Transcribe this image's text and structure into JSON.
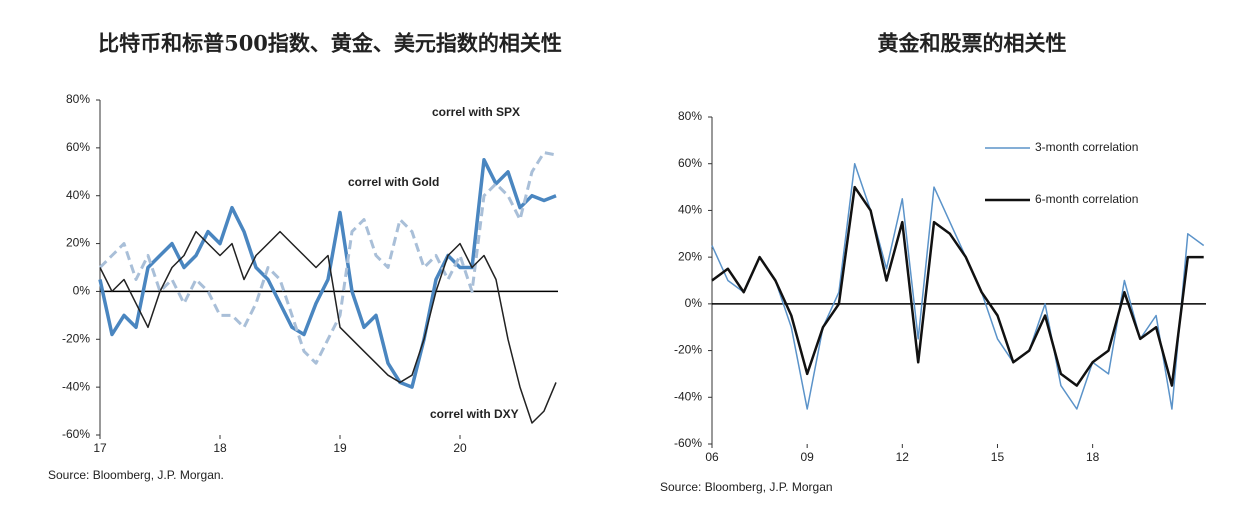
{
  "chart_data": [
    {
      "type": "line",
      "title": "比特币和标普500指数、黄金、美元指数的相关性",
      "source": "Source: Bloomberg, J.P. Morgan.",
      "x": [
        17,
        17.1,
        17.2,
        17.3,
        17.4,
        17.5,
        17.6,
        17.7,
        17.8,
        17.9,
        18,
        18.1,
        18.2,
        18.3,
        18.4,
        18.5,
        18.6,
        18.7,
        18.8,
        18.9,
        19,
        19.1,
        19.2,
        19.3,
        19.4,
        19.5,
        19.6,
        19.7,
        19.8,
        19.9,
        20,
        20.1,
        20.2,
        20.3,
        20.4,
        20.5,
        20.6,
        20.7,
        20.8
      ],
      "series": [
        {
          "name": "correl with SPX",
          "color": "#4a86c0",
          "linewidth": 3.5,
          "dashed": false,
          "values": [
            5,
            -18,
            -10,
            -15,
            10,
            15,
            20,
            10,
            15,
            25,
            20,
            35,
            25,
            10,
            5,
            -5,
            -15,
            -18,
            -5,
            5,
            33,
            0,
            -15,
            -10,
            -30,
            -38,
            -40,
            -20,
            5,
            15,
            10,
            10,
            55,
            45,
            50,
            35,
            40,
            38,
            40
          ]
        },
        {
          "name": "correl with Gold",
          "color": "#a9bfd8",
          "linewidth": 3,
          "dashed": true,
          "values": [
            10,
            15,
            20,
            5,
            15,
            0,
            5,
            -5,
            5,
            0,
            -10,
            -10,
            -15,
            -5,
            10,
            5,
            -10,
            -25,
            -30,
            -20,
            -10,
            25,
            30,
            15,
            10,
            30,
            25,
            10,
            15,
            5,
            15,
            0,
            40,
            45,
            40,
            30,
            50,
            58,
            57
          ]
        },
        {
          "name": "correl with DXY",
          "color": "#222222",
          "linewidth": 1.5,
          "dashed": false,
          "values": [
            10,
            0,
            5,
            -5,
            -15,
            0,
            10,
            15,
            25,
            20,
            15,
            20,
            5,
            15,
            20,
            25,
            20,
            15,
            10,
            15,
            -15,
            -20,
            -25,
            -30,
            -35,
            -38,
            -35,
            -20,
            0,
            15,
            20,
            10,
            15,
            5,
            -20,
            -40,
            -55,
            -50,
            -38
          ]
        }
      ],
      "xlim": [
        17,
        20.85
      ],
      "xticks": [
        17,
        18,
        19,
        20
      ],
      "ylim": [
        -60,
        80
      ],
      "yticks": [
        {
          "value": -60,
          "label": "-60%"
        },
        {
          "value": -40,
          "label": "-40%"
        },
        {
          "value": -20,
          "label": "-20%"
        },
        {
          "value": 0,
          "label": "0%"
        },
        {
          "value": 20,
          "label": "20%"
        },
        {
          "value": 40,
          "label": "40%"
        },
        {
          "value": 60,
          "label": "60%"
        },
        {
          "value": 80,
          "label": "80%"
        }
      ],
      "zero_line": true,
      "legend": "inline"
    },
    {
      "type": "line",
      "title": "黄金和股票的相关性",
      "source": "Source: Bloomberg, J.P. Morgan",
      "x": [
        6,
        6.5,
        7,
        7.5,
        8,
        8.5,
        9,
        9.5,
        10,
        10.5,
        11,
        11.5,
        12,
        12.5,
        13,
        13.5,
        14,
        14.5,
        15,
        15.5,
        16,
        16.5,
        17,
        17.5,
        18,
        18.5,
        19,
        19.5,
        20,
        20.5,
        21,
        21.5
      ],
      "series": [
        {
          "name": "3-month correlation",
          "color": "#5b93c9",
          "linewidth": 1.5,
          "dashed": false,
          "values": [
            25,
            10,
            5,
            20,
            10,
            -10,
            -45,
            -10,
            5,
            60,
            40,
            15,
            45,
            -15,
            50,
            35,
            20,
            5,
            -15,
            -25,
            -20,
            0,
            -35,
            -45,
            -25,
            -30,
            10,
            -15,
            -5,
            -45,
            30,
            25
          ]
        },
        {
          "name": "6-month correlation",
          "color": "#111111",
          "linewidth": 2.5,
          "dashed": false,
          "values": [
            10,
            15,
            5,
            20,
            10,
            -5,
            -30,
            -10,
            0,
            50,
            40,
            10,
            35,
            -25,
            35,
            30,
            20,
            5,
            -5,
            -25,
            -20,
            -5,
            -30,
            -35,
            -25,
            -20,
            5,
            -15,
            -10,
            -35,
            20,
            20
          ]
        }
      ],
      "xlim": [
        6,
        21.7
      ],
      "xticks": [
        {
          "value": 6,
          "label": "06"
        },
        {
          "value": 9,
          "label": "09"
        },
        12,
        15,
        18
      ],
      "ylim": [
        -60,
        80
      ],
      "yticks": [
        {
          "value": -60,
          "label": "-60%"
        },
        {
          "value": -40,
          "label": "-40%"
        },
        {
          "value": -20,
          "label": "-20%"
        },
        {
          "value": 0,
          "label": "0%"
        },
        {
          "value": 20,
          "label": "20%"
        },
        {
          "value": 40,
          "label": "40%"
        },
        {
          "value": 60,
          "label": "60%"
        },
        {
          "value": 80,
          "label": "80%"
        }
      ],
      "zero_line": true,
      "legend": "top-right"
    }
  ]
}
